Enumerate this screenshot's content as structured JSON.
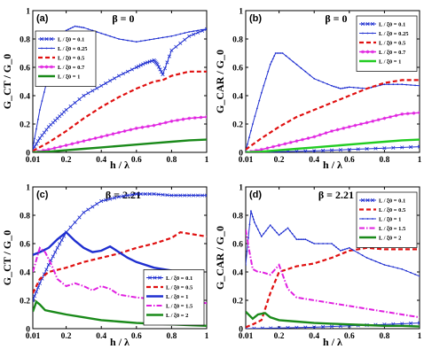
{
  "chart_data": [
    {
      "type": "line",
      "panel": "(a)",
      "annotation": "β = 0",
      "xlabel": "h / λ",
      "ylabel": "G_CT / G_0",
      "xlim": [
        0.01,
        1
      ],
      "ylim": [
        0,
        1
      ],
      "xticks": [
        "0.01",
        "0.2",
        "0.4",
        "0.6",
        "0.8",
        "1"
      ],
      "yticks": [
        "0",
        "0.2",
        "0.4",
        "0.6",
        "0.8",
        "1"
      ],
      "legend_position": "top-left",
      "series": [
        {
          "name": "L / ξ0 = 0.1",
          "color": "#1f2fd0",
          "style": "line-x",
          "x": [
            0.01,
            0.05,
            0.1,
            0.15,
            0.2,
            0.3,
            0.4,
            0.5,
            0.6,
            0.65,
            0.7,
            0.72,
            0.75,
            0.8,
            0.9,
            1.0
          ],
          "y": [
            0.02,
            0.1,
            0.18,
            0.24,
            0.3,
            0.4,
            0.47,
            0.54,
            0.6,
            0.63,
            0.65,
            0.62,
            0.55,
            0.72,
            0.82,
            0.87
          ]
        },
        {
          "name": "L / ξ0 = 0.25",
          "color": "#1f2fd0",
          "style": "line-dot",
          "x": [
            0.01,
            0.05,
            0.1,
            0.15,
            0.2,
            0.25,
            0.3,
            0.4,
            0.5,
            0.6,
            0.7,
            0.8,
            0.9,
            1.0
          ],
          "y": [
            0.03,
            0.3,
            0.55,
            0.75,
            0.86,
            0.89,
            0.88,
            0.84,
            0.8,
            0.78,
            0.8,
            0.82,
            0.85,
            0.87
          ]
        },
        {
          "name": "L / ξ0 = 0.5",
          "color": "#e01010",
          "style": "dash",
          "x": [
            0.01,
            0.1,
            0.2,
            0.3,
            0.4,
            0.5,
            0.6,
            0.7,
            0.75,
            0.8,
            0.9,
            1.0
          ],
          "y": [
            0.01,
            0.07,
            0.15,
            0.24,
            0.32,
            0.39,
            0.45,
            0.5,
            0.51,
            0.54,
            0.57,
            0.57
          ]
        },
        {
          "name": "L / ξ0 = 0.7",
          "color": "#e020e0",
          "style": "line-star",
          "x": [
            0.01,
            0.1,
            0.2,
            0.3,
            0.4,
            0.5,
            0.6,
            0.7,
            0.8,
            0.9,
            1.0
          ],
          "y": [
            0.0,
            0.02,
            0.05,
            0.08,
            0.11,
            0.14,
            0.17,
            0.19,
            0.22,
            0.24,
            0.25
          ]
        },
        {
          "name": "L / ξ0 = 1",
          "color": "#1a8a1a",
          "style": "thick",
          "x": [
            0.01,
            0.1,
            0.2,
            0.3,
            0.4,
            0.5,
            0.6,
            0.7,
            0.8,
            0.9,
            1.0
          ],
          "y": [
            0.0,
            0.005,
            0.015,
            0.025,
            0.035,
            0.045,
            0.055,
            0.065,
            0.075,
            0.085,
            0.09
          ]
        }
      ]
    },
    {
      "type": "line",
      "panel": "(b)",
      "annotation": "β = 0",
      "xlabel": "h / λ",
      "ylabel": "G_CAR / G_0",
      "xlim": [
        0.01,
        1
      ],
      "ylim": [
        0,
        1
      ],
      "xticks": [
        "0.01",
        "0.2",
        "0.4",
        "0.6",
        "0.8",
        "1"
      ],
      "yticks": [
        "0",
        "0.2",
        "0.4",
        "0.6",
        "0.8",
        "1"
      ],
      "legend_position": "top-right",
      "series": [
        {
          "name": "L / ξ0 = 0.1",
          "color": "#1f2fd0",
          "style": "line-x",
          "x": [
            0.01,
            0.2,
            0.4,
            0.6,
            0.8,
            1.0
          ],
          "y": [
            0.0,
            0.005,
            0.01,
            0.02,
            0.03,
            0.04
          ]
        },
        {
          "name": "L / ξ0 = 0.25",
          "color": "#1f2fd0",
          "style": "line-dot",
          "x": [
            0.01,
            0.05,
            0.1,
            0.15,
            0.18,
            0.22,
            0.3,
            0.4,
            0.5,
            0.55,
            0.6,
            0.7,
            0.8,
            0.9,
            1.0
          ],
          "y": [
            0.01,
            0.2,
            0.42,
            0.62,
            0.7,
            0.7,
            0.62,
            0.52,
            0.47,
            0.45,
            0.46,
            0.45,
            0.48,
            0.48,
            0.47
          ]
        },
        {
          "name": "L / ξ0 = 0.5",
          "color": "#e01010",
          "style": "dash",
          "x": [
            0.01,
            0.1,
            0.2,
            0.3,
            0.4,
            0.5,
            0.6,
            0.7,
            0.8,
            0.9,
            1.0
          ],
          "y": [
            0.02,
            0.1,
            0.18,
            0.25,
            0.3,
            0.35,
            0.4,
            0.45,
            0.49,
            0.51,
            0.51
          ]
        },
        {
          "name": "L / ξ0 = 0.7",
          "color": "#e020e0",
          "style": "line-star",
          "x": [
            0.01,
            0.1,
            0.2,
            0.3,
            0.4,
            0.5,
            0.6,
            0.7,
            0.8,
            0.9,
            1.0
          ],
          "y": [
            0.0,
            0.02,
            0.05,
            0.08,
            0.11,
            0.15,
            0.18,
            0.21,
            0.24,
            0.27,
            0.28
          ]
        },
        {
          "name": "L / ξ0 = 1",
          "color": "#22cc22",
          "style": "thick",
          "x": [
            0.01,
            0.1,
            0.2,
            0.3,
            0.4,
            0.5,
            0.6,
            0.7,
            0.8,
            0.9,
            1.0
          ],
          "y": [
            0.0,
            0.005,
            0.015,
            0.025,
            0.035,
            0.045,
            0.055,
            0.065,
            0.075,
            0.085,
            0.09
          ]
        }
      ]
    },
    {
      "type": "line",
      "panel": "(c)",
      "annotation": "β = 2.21",
      "xlabel": "h / λ",
      "ylabel": "G_CT / G_0",
      "xlim": [
        0.01,
        1
      ],
      "ylim": [
        0,
        1
      ],
      "xticks": [
        "0.01",
        "0.2",
        "0.4",
        "0.6",
        "0.8",
        "1"
      ],
      "yticks": [
        "0",
        "0.2",
        "0.4",
        "0.6",
        "0.8",
        "1"
      ],
      "legend_position": "bottom-right",
      "series": [
        {
          "name": "L / ξ0 = 0.1",
          "color": "#1f2fd0",
          "style": "line-x",
          "x": [
            0.01,
            0.05,
            0.1,
            0.15,
            0.2,
            0.3,
            0.4,
            0.5,
            0.6,
            0.7,
            0.8,
            0.9,
            1.0
          ],
          "y": [
            0.2,
            0.32,
            0.45,
            0.57,
            0.68,
            0.82,
            0.9,
            0.93,
            0.95,
            0.95,
            0.94,
            0.94,
            0.94
          ]
        },
        {
          "name": "L / ξ0 = 0.5",
          "color": "#e01010",
          "style": "dash",
          "x": [
            0.01,
            0.05,
            0.1,
            0.2,
            0.3,
            0.4,
            0.5,
            0.6,
            0.7,
            0.8,
            0.85,
            0.9,
            1.0
          ],
          "y": [
            0.25,
            0.35,
            0.4,
            0.43,
            0.47,
            0.5,
            0.53,
            0.57,
            0.6,
            0.64,
            0.68,
            0.67,
            0.65
          ]
        },
        {
          "name": "L / ξ0 = 1",
          "color": "#1f2fd0",
          "style": "thick",
          "x": [
            0.01,
            0.05,
            0.1,
            0.15,
            0.2,
            0.25,
            0.3,
            0.35,
            0.4,
            0.45,
            0.5,
            0.55,
            0.6,
            0.7,
            0.8
          ],
          "y": [
            0.52,
            0.54,
            0.57,
            0.63,
            0.68,
            0.62,
            0.57,
            0.54,
            0.55,
            0.58,
            0.54,
            0.5,
            0.47,
            0.43,
            0.41
          ]
        },
        {
          "name": "L / ξ0 = 1.5",
          "color": "#e020e0",
          "style": "dashdot",
          "x": [
            0.01,
            0.05,
            0.08,
            0.12,
            0.15,
            0.2,
            0.25,
            0.3,
            0.35,
            0.4,
            0.45,
            0.5,
            0.6,
            0.7,
            0.8,
            0.9,
            1.0
          ],
          "y": [
            0.4,
            0.57,
            0.54,
            0.44,
            0.35,
            0.3,
            0.32,
            0.3,
            0.27,
            0.3,
            0.28,
            0.24,
            0.22,
            0.21,
            0.2,
            0.19,
            0.18
          ]
        },
        {
          "name": "L / ξ0 = 2",
          "color": "#1a8a1a",
          "style": "thick",
          "x": [
            0.01,
            0.03,
            0.05,
            0.08,
            0.12,
            0.2,
            0.3,
            0.4,
            0.5,
            0.6,
            0.7,
            0.8,
            0.9,
            1.0
          ],
          "y": [
            0.12,
            0.19,
            0.17,
            0.13,
            0.12,
            0.1,
            0.08,
            0.06,
            0.05,
            0.04,
            0.035,
            0.03,
            0.025,
            0.02
          ]
        }
      ]
    },
    {
      "type": "line",
      "panel": "(d)",
      "annotation": "β = 2.21",
      "xlabel": "h / λ",
      "ylabel": "G_CAR / G_0",
      "xlim": [
        0.01,
        1
      ],
      "ylim": [
        0,
        1
      ],
      "xticks": [
        "0.01",
        "0.2",
        "0.4",
        "0.6",
        "0.8",
        "1"
      ],
      "yticks": [
        "0",
        "0.2",
        "0.4",
        "0.6",
        "0.8",
        "1"
      ],
      "legend_position": "top-right",
      "series": [
        {
          "name": "L / ξ0 = 0.1",
          "color": "#1f2fd0",
          "style": "line-x",
          "x": [
            0.01,
            0.2,
            0.4,
            0.6,
            0.8,
            1.0
          ],
          "y": [
            0.0,
            0.005,
            0.01,
            0.02,
            0.03,
            0.04
          ]
        },
        {
          "name": "L / ξ0 = 0.5",
          "color": "#e01010",
          "style": "dash",
          "x": [
            0.01,
            0.05,
            0.1,
            0.15,
            0.2,
            0.3,
            0.4,
            0.5,
            0.6,
            0.7,
            0.8,
            0.9,
            1.0
          ],
          "y": [
            0.01,
            0.03,
            0.06,
            0.25,
            0.4,
            0.44,
            0.46,
            0.5,
            0.55,
            0.57,
            0.56,
            0.56,
            0.56
          ]
        },
        {
          "name": "L / ξ0 = 1",
          "color": "#1f2fd0",
          "style": "line-dot",
          "x": [
            0.01,
            0.04,
            0.06,
            0.1,
            0.15,
            0.2,
            0.25,
            0.3,
            0.35,
            0.4,
            0.5,
            0.55,
            0.6,
            0.7,
            0.8,
            0.9,
            1.0
          ],
          "y": [
            0.45,
            0.83,
            0.75,
            0.65,
            0.73,
            0.66,
            0.71,
            0.63,
            0.63,
            0.6,
            0.6,
            0.55,
            0.57,
            0.5,
            0.45,
            0.42,
            0.37
          ]
        },
        {
          "name": "L / ξ0 = 1.5",
          "color": "#e020e0",
          "style": "dashdot",
          "x": [
            0.01,
            0.03,
            0.05,
            0.08,
            0.1,
            0.15,
            0.2,
            0.25,
            0.3,
            0.4,
            0.5,
            0.6,
            0.7,
            0.8,
            0.9,
            1.0
          ],
          "y": [
            0.7,
            0.55,
            0.42,
            0.4,
            0.4,
            0.38,
            0.45,
            0.28,
            0.22,
            0.2,
            0.18,
            0.16,
            0.14,
            0.12,
            0.1,
            0.08
          ]
        },
        {
          "name": "L / ξ0 = 2",
          "color": "#1a8a1a",
          "style": "thick",
          "x": [
            0.01,
            0.05,
            0.08,
            0.12,
            0.15,
            0.2,
            0.3,
            0.4,
            0.5,
            0.6,
            0.7,
            0.8,
            0.9,
            1.0
          ],
          "y": [
            0.12,
            0.07,
            0.1,
            0.11,
            0.08,
            0.06,
            0.05,
            0.04,
            0.035,
            0.03,
            0.025,
            0.02,
            0.02,
            0.015
          ]
        }
      ]
    }
  ]
}
